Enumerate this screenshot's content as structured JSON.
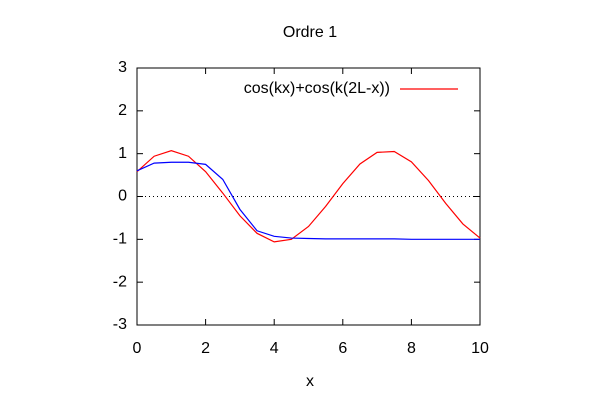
{
  "chart_data": {
    "type": "line",
    "title": "Ordre 1",
    "x_label": "x",
    "x": [
      0,
      0.5,
      1,
      1.5,
      2,
      2.5,
      3,
      3.5,
      4,
      4.5,
      5,
      5.5,
      6,
      6.5,
      7,
      7.5,
      8,
      8.5,
      9,
      9.5,
      10
    ],
    "series": [
      {
        "name": "cos(kx)+cos(k(2L-x))",
        "color": "#ff0000",
        "values": [
          0.58,
          0.94,
          1.07,
          0.94,
          0.58,
          0.08,
          -0.45,
          -0.86,
          -1.06,
          -1.0,
          -0.7,
          -0.23,
          0.3,
          0.76,
          1.03,
          1.05,
          0.81,
          0.37,
          -0.16,
          -0.64,
          -0.97
        ]
      },
      {
        "color": "#0000ff",
        "values": [
          0.6,
          0.78,
          0.8,
          0.8,
          0.75,
          0.4,
          -0.3,
          -0.8,
          -0.93,
          -0.97,
          -0.98,
          -0.99,
          -0.99,
          -0.99,
          -0.99,
          -0.99,
          -1.0,
          -1.0,
          -1.0,
          -1.0,
          -1.0
        ]
      }
    ],
    "xlim": [
      0,
      10
    ],
    "xticks": [
      0,
      2,
      4,
      6,
      8,
      10
    ],
    "ylim": [
      -3,
      3
    ],
    "yticks": [
      -3,
      -2,
      -1,
      0,
      1,
      2,
      3
    ],
    "zero_line": true,
    "legend": "top-right"
  }
}
